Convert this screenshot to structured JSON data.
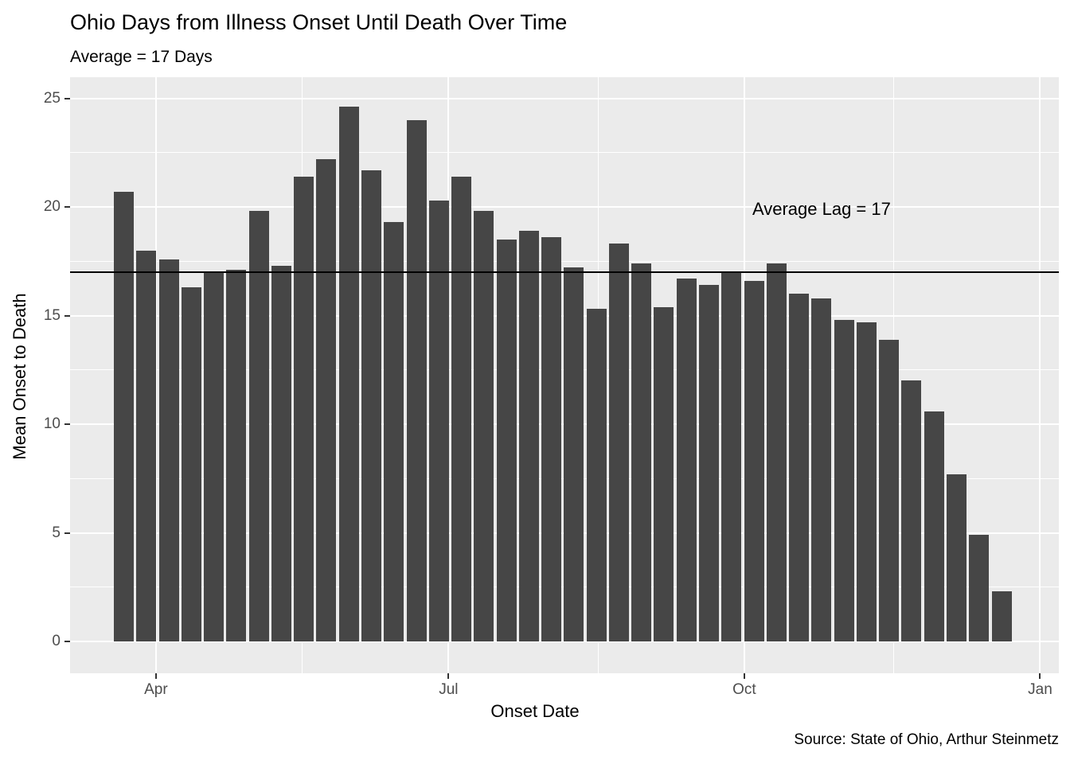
{
  "chart_data": {
    "type": "bar",
    "title": "Ohio Days from Illness Onset Until Death Over Time",
    "subtitle": "Average = 17 Days",
    "xlabel": "Onset Date",
    "ylabel": "Mean Onset to Death",
    "caption": "Source: State of Ohio, Arthur Steinmetz",
    "annotation": {
      "text": "Average Lag = 17",
      "y_value": 19.9,
      "x_frac": 0.76
    },
    "avg_line_value": 17,
    "x_tick_labels": [
      "Apr",
      "Jul",
      "Oct",
      "Jan"
    ],
    "y_tick_labels": [
      "0",
      "5",
      "10",
      "15",
      "20",
      "25"
    ],
    "y_tick_values": [
      0,
      5,
      10,
      15,
      20,
      25
    ],
    "y_minor_values": [
      2.5,
      7.5,
      12.5,
      17.5,
      22.5
    ],
    "ylim": [
      0,
      26
    ],
    "grid": true,
    "legend": "none",
    "bars_per_week": true,
    "values": [
      20.7,
      18.0,
      17.6,
      16.3,
      17.0,
      17.1,
      19.8,
      17.3,
      21.4,
      22.2,
      24.6,
      21.7,
      19.3,
      24.0,
      20.3,
      21.4,
      19.8,
      18.5,
      18.9,
      18.6,
      17.2,
      15.3,
      18.3,
      17.4,
      15.4,
      16.7,
      16.4,
      17.0,
      16.6,
      17.4,
      16.0,
      15.8,
      14.8,
      14.7,
      13.9,
      12.0,
      10.6,
      7.7,
      4.9,
      2.3
    ],
    "colors": {
      "bar": "#464646",
      "panel_background": "#EBEBEB",
      "grid": "#FFFFFF",
      "average_line": "#000000",
      "tick_label": "#4D4D4D",
      "text": "#000000"
    }
  }
}
